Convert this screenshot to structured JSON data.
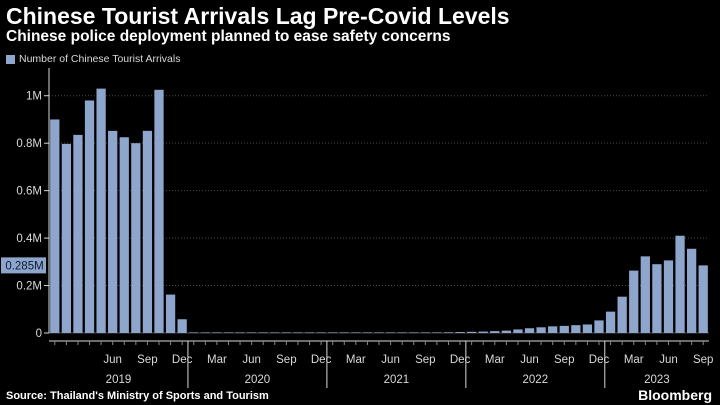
{
  "header": {
    "title": "Chinese Tourist Arrivals Lag Pre-Covid Levels",
    "subtitle": "Chinese police deployment planned to ease safety concerns"
  },
  "footer": {
    "source": "Source: Thailand's Ministry of Sports and Tourism",
    "brand": "Bloomberg"
  },
  "colors": {
    "bar": "#8fa6cc",
    "background": "#000000",
    "grid": "#4a4a4a",
    "axis_text": "#d9d9d9",
    "callout_bg": "#8fa6cc",
    "callout_text": "#0a1a33"
  },
  "chart_data": {
    "type": "bar",
    "legend": {
      "label": "Number of Chinese Tourist Arrivals",
      "placement": "top-left"
    },
    "y_axis": {
      "position": "left",
      "range": [
        0,
        1100000
      ],
      "ticks": [
        0,
        200000,
        400000,
        600000,
        800000,
        1000000
      ],
      "tick_labels": [
        "0",
        "0.2M",
        "0.4M",
        "0.6M",
        "0.8M",
        "1M"
      ],
      "grid": true
    },
    "x_axis": {
      "month_labels": [
        {
          "month": "2019-06",
          "label": "Jun"
        },
        {
          "month": "2019-09",
          "label": "Sep"
        },
        {
          "month": "2019-12",
          "label": "Dec"
        },
        {
          "month": "2020-03",
          "label": "Mar"
        },
        {
          "month": "2020-06",
          "label": "Jun"
        },
        {
          "month": "2020-09",
          "label": "Sep"
        },
        {
          "month": "2020-12",
          "label": "Dec"
        },
        {
          "month": "2021-03",
          "label": "Mar"
        },
        {
          "month": "2021-06",
          "label": "Jun"
        },
        {
          "month": "2021-09",
          "label": "Sep"
        },
        {
          "month": "2021-12",
          "label": "Dec"
        },
        {
          "month": "2022-03",
          "label": "Mar"
        },
        {
          "month": "2022-06",
          "label": "Jun"
        },
        {
          "month": "2022-09",
          "label": "Sep"
        },
        {
          "month": "2022-12",
          "label": "Dec"
        },
        {
          "month": "2023-03",
          "label": "Mar"
        },
        {
          "month": "2023-06",
          "label": "Jun"
        },
        {
          "month": "2023-09",
          "label": "Sep"
        }
      ],
      "year_labels": [
        "2019",
        "2020",
        "2021",
        "2022",
        "2023"
      ]
    },
    "callout": {
      "value": 285000,
      "label": "0.285M"
    },
    "x": [
      "2019-01",
      "2019-02",
      "2019-03",
      "2019-04",
      "2019-05",
      "2019-06",
      "2019-07",
      "2019-08",
      "2019-09",
      "2019-10",
      "2019-11",
      "2019-12",
      "2020-01",
      "2020-02",
      "2020-03",
      "2020-04",
      "2020-05",
      "2020-06",
      "2020-07",
      "2020-08",
      "2020-09",
      "2020-10",
      "2020-11",
      "2020-12",
      "2021-01",
      "2021-02",
      "2021-03",
      "2021-04",
      "2021-05",
      "2021-06",
      "2021-07",
      "2021-08",
      "2021-09",
      "2021-10",
      "2021-11",
      "2021-12",
      "2022-01",
      "2022-02",
      "2022-03",
      "2022-04",
      "2022-05",
      "2022-06",
      "2022-07",
      "2022-08",
      "2022-09",
      "2022-10",
      "2022-11",
      "2022-12",
      "2023-01",
      "2023-02",
      "2023-03",
      "2023-04",
      "2023-05",
      "2023-06",
      "2023-07",
      "2023-08",
      "2023-09"
    ],
    "values": [
      900000,
      797000,
      835000,
      980000,
      1030000,
      852000,
      825000,
      800000,
      852000,
      1025000,
      162000,
      58000,
      1000,
      1000,
      1000,
      1000,
      1000,
      1000,
      1000,
      1000,
      1000,
      1000,
      1000,
      1000,
      1000,
      1000,
      1000,
      1000,
      1000,
      1000,
      1500,
      1500,
      2000,
      2000,
      3000,
      4000,
      5000,
      6000,
      8000,
      10000,
      15000,
      20000,
      24000,
      28000,
      30000,
      33000,
      36000,
      53000,
      90000,
      153000,
      263000,
      323000,
      290000,
      306000,
      410000,
      355000,
      285000
    ]
  }
}
